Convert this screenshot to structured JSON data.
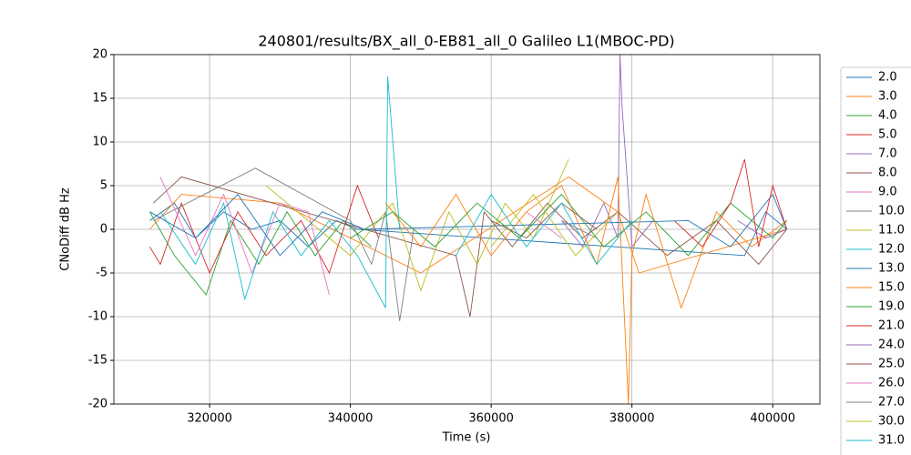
{
  "chart_data": {
    "type": "line",
    "title": "240801/results/BX_all_0-EB81_all_0 Galileo L1(MBOC-PD)",
    "xlabel": "Time (s)",
    "ylabel": "CNoDiff dB Hz",
    "xlim": [
      306400,
      406700
    ],
    "ylim": [
      -20,
      20
    ],
    "xticks": [
      320000,
      340000,
      360000,
      380000,
      400000
    ],
    "yticks": [
      -20,
      -15,
      -10,
      -5,
      0,
      5,
      10,
      15,
      20
    ],
    "grid": true,
    "legend": "outside right",
    "series": [
      {
        "name": "2.0",
        "color": "#1f77b4",
        "x": [
          311500,
          315000,
          318000,
          322000,
          326000,
          330000,
          334000,
          338000,
          341000,
          396000,
          399000,
          402000
        ],
        "values": [
          1,
          3,
          -1,
          2,
          0,
          1,
          -2,
          1,
          0,
          -3,
          2,
          0
        ]
      },
      {
        "name": "3.0",
        "color": "#ff7f0e",
        "x": [
          311500,
          316000,
          330000,
          350000,
          371000,
          378000,
          381000,
          402000
        ],
        "values": [
          0,
          4,
          3,
          -5,
          6,
          2,
          -5,
          0
        ]
      },
      {
        "name": "4.0",
        "color": "#2ca02c",
        "x": [
          311500,
          315000,
          319500,
          323000,
          327000,
          331000,
          335000,
          339000,
          343000
        ],
        "values": [
          2,
          -3,
          -7.5,
          1,
          -4,
          2,
          -3,
          1,
          -2
        ]
      },
      {
        "name": "5.0",
        "color": "#d62728",
        "x": [
          311500,
          313000,
          316000,
          320000,
          324000,
          328000,
          333000,
          337000,
          341000,
          344000
        ],
        "values": [
          -2,
          -4,
          3,
          -5,
          2,
          -3,
          1,
          -5,
          5,
          -1
        ]
      },
      {
        "name": "7.0",
        "color": "#9467bd",
        "x": [
          370000,
          373000,
          376000,
          378000,
          378300,
          378600,
          380000,
          383000
        ],
        "values": [
          1,
          -2,
          3,
          -1,
          20,
          14,
          -2,
          1
        ]
      },
      {
        "name": "8.0",
        "color": "#8c564b",
        "x": [
          312000,
          316000,
          355000,
          357000,
          359000,
          363000,
          368000,
          373000,
          378000,
          385000,
          392000,
          398000,
          402000
        ],
        "values": [
          3,
          6,
          -3,
          -10,
          2,
          -2,
          3,
          -1,
          2,
          -3,
          1,
          -4,
          0
        ]
      },
      {
        "name": "9.0",
        "color": "#e377c2",
        "x": [
          313000,
          318000,
          322000,
          326000,
          330000,
          334000,
          337000
        ],
        "values": [
          6,
          -3,
          4,
          -5,
          3,
          2,
          -7.5
        ]
      },
      {
        "name": "10.0",
        "color": "#7f7f7f",
        "x": [
          312000,
          326500,
          340000,
          343000,
          345000,
          347000,
          349000
        ],
        "values": [
          1,
          7,
          1,
          -4,
          2,
          -10.5,
          0
        ]
      },
      {
        "name": "11.0",
        "color": "#bcbd22",
        "x": [
          328000,
          340000,
          346000,
          350000,
          354000,
          358000,
          362000,
          366000,
          371000
        ],
        "values": [
          5,
          -3,
          3,
          -7,
          2,
          -4,
          3,
          -1,
          8
        ]
      },
      {
        "name": "12.0",
        "color": "#17becf",
        "x": [
          313000,
          318000,
          322000,
          325000,
          329000,
          333000,
          337000,
          341000,
          345000,
          345300,
          347000
        ],
        "values": [
          2,
          -4,
          3,
          -8,
          2,
          -3,
          1,
          -3,
          -9,
          17.5,
          0
        ]
      },
      {
        "name": "13.0",
        "color": "#1f77b4",
        "x": [
          311500,
          318000,
          324000,
          330000,
          336000,
          342000,
          388000,
          394000,
          400000,
          402000
        ],
        "values": [
          2,
          -1,
          4,
          -3,
          2,
          0,
          1,
          -2,
          4,
          0
        ]
      },
      {
        "name": "15.0",
        "color": "#ff7f0e",
        "x": [
          345000,
          350000,
          355000,
          360000,
          365000,
          370000,
          375000,
          378000,
          379500,
          380000,
          382000,
          387000,
          392000,
          397000,
          402000
        ],
        "values": [
          3,
          -2,
          4,
          -3,
          2,
          5,
          -4,
          6,
          -20,
          -3,
          4,
          -9,
          2,
          -2,
          1
        ]
      },
      {
        "name": "19.0",
        "color": "#2ca02c",
        "x": [
          340000,
          346000,
          352000,
          358000,
          364000,
          370000,
          376000,
          382000,
          388000,
          394000,
          400000,
          402000
        ],
        "values": [
          -1,
          2,
          -2,
          3,
          -1,
          4,
          -2,
          2,
          -3,
          3,
          -1,
          1
        ]
      },
      {
        "name": "21.0",
        "color": "#d62728",
        "x": [
          386000,
          390000,
          394000,
          396000,
          398000,
          400000,
          402000
        ],
        "values": [
          1,
          -2,
          3,
          8,
          -2,
          5,
          0
        ]
      },
      {
        "name": "24.0",
        "color": "#9467bd",
        "x": [
          395000,
          399000,
          402000
        ],
        "values": [
          1,
          -1,
          0
        ]
      },
      {
        "name": "25.0",
        "color": "#8c564b",
        "x": [
          360000,
          365000,
          370000,
          375000
        ],
        "values": [
          1,
          -1,
          3,
          0
        ]
      },
      {
        "name": "26.0",
        "color": "#e377c2",
        "x": [
          365000,
          370000
        ],
        "values": [
          2,
          -1
        ]
      },
      {
        "name": "27.0",
        "color": "#7f7f7f",
        "x": [
          370000,
          375000
        ],
        "values": [
          1,
          -1
        ]
      },
      {
        "name": "30.0",
        "color": "#bcbd22",
        "x": [
          360000,
          366000,
          372000,
          378000
        ],
        "values": [
          -2,
          4,
          -3,
          2
        ]
      },
      {
        "name": "31.0",
        "color": "#17becf",
        "x": [
          355000,
          360000,
          365000,
          370000,
          375000,
          380000
        ],
        "values": [
          -3,
          4,
          -2,
          3,
          -4,
          1
        ]
      }
    ]
  }
}
